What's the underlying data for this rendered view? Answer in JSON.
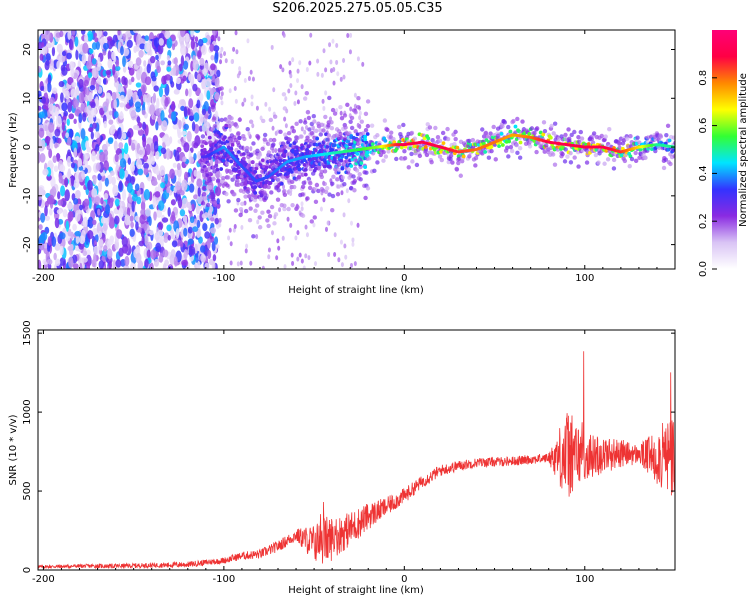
{
  "title": "S206.2025.275.05.05.C35",
  "chart_data": [
    {
      "type": "heatmap",
      "xlabel": "Height of straight line (km)",
      "ylabel": "Frequency (Hz)",
      "xlim": [
        -203,
        150
      ],
      "ylim": [
        -25,
        24
      ],
      "xticks": [
        -200,
        -100,
        0,
        100
      ],
      "yticks": [
        -20,
        -10,
        0,
        10,
        20
      ],
      "colorbar": {
        "label": "Normalized spectral amplitude",
        "range": [
          0,
          1
        ],
        "ticks": [
          "0.0",
          "0.2",
          "0.4",
          "0.6",
          "0.8"
        ],
        "colors": [
          "#ffffff",
          "#d9c4f5",
          "#8a2be2",
          "#3333ff",
          "#00e5ff",
          "#33ff33",
          "#ffff00",
          "#ff8800",
          "#ff0044",
          "#ff0077"
        ]
      },
      "ridge": {
        "x": [
          -110,
          -100,
          -90,
          -82,
          -75,
          -65,
          -55,
          -45,
          -35,
          -25,
          -15,
          -5,
          0,
          10,
          20,
          30,
          40,
          50,
          60,
          70,
          80,
          90,
          100,
          110,
          120,
          130,
          140,
          150
        ],
        "y": [
          -2,
          0,
          -4,
          -7,
          -6,
          -3,
          -2,
          -1.5,
          -1,
          -0.5,
          0,
          0.5,
          0.5,
          1,
          0,
          -1,
          -0.5,
          1,
          2.5,
          2,
          1,
          0.5,
          0,
          0,
          -1,
          0,
          0.5,
          0
        ],
        "amplitude": [
          0.3,
          0.4,
          0.35,
          0.35,
          0.35,
          0.4,
          0.4,
          0.45,
          0.5,
          0.55,
          0.6,
          0.85,
          0.9,
          0.9,
          0.9,
          0.85,
          0.8,
          0.8,
          0.75,
          0.8,
          0.9,
          0.9,
          0.9,
          0.9,
          0.85,
          0.7,
          0.5,
          0.5
        ]
      }
    },
    {
      "type": "line",
      "xlabel": "Height of straight line (km)",
      "ylabel": "SNR (10 * v/v)",
      "xlim": [
        -203,
        150
      ],
      "ylim": [
        0,
        1520
      ],
      "xticks": [
        -200,
        -100,
        0,
        100
      ],
      "yticks": [
        0,
        500,
        1000,
        1500
      ],
      "color": "#ee3333",
      "trend": {
        "x": [
          -203,
          -180,
          -160,
          -140,
          -120,
          -100,
          -90,
          -80,
          -70,
          -60,
          -50,
          -40,
          -30,
          -20,
          -10,
          0,
          10,
          20,
          30,
          40,
          60,
          80,
          90,
          100,
          110,
          120,
          140,
          150
        ],
        "y": [
          20,
          25,
          25,
          30,
          35,
          60,
          90,
          100,
          150,
          220,
          170,
          200,
          260,
          340,
          400,
          470,
          560,
          630,
          660,
          680,
          690,
          710,
          730,
          720,
          730,
          740,
          720,
          700
        ]
      },
      "noise": {
        "x": [
          -203,
          -100,
          -60,
          -45,
          -35,
          -25,
          -10,
          10,
          40,
          80,
          90,
          100,
          130,
          150
        ],
        "amp": [
          10,
          20,
          40,
          160,
          120,
          100,
          60,
          40,
          30,
          30,
          300,
          150,
          60,
          300
        ]
      }
    }
  ]
}
